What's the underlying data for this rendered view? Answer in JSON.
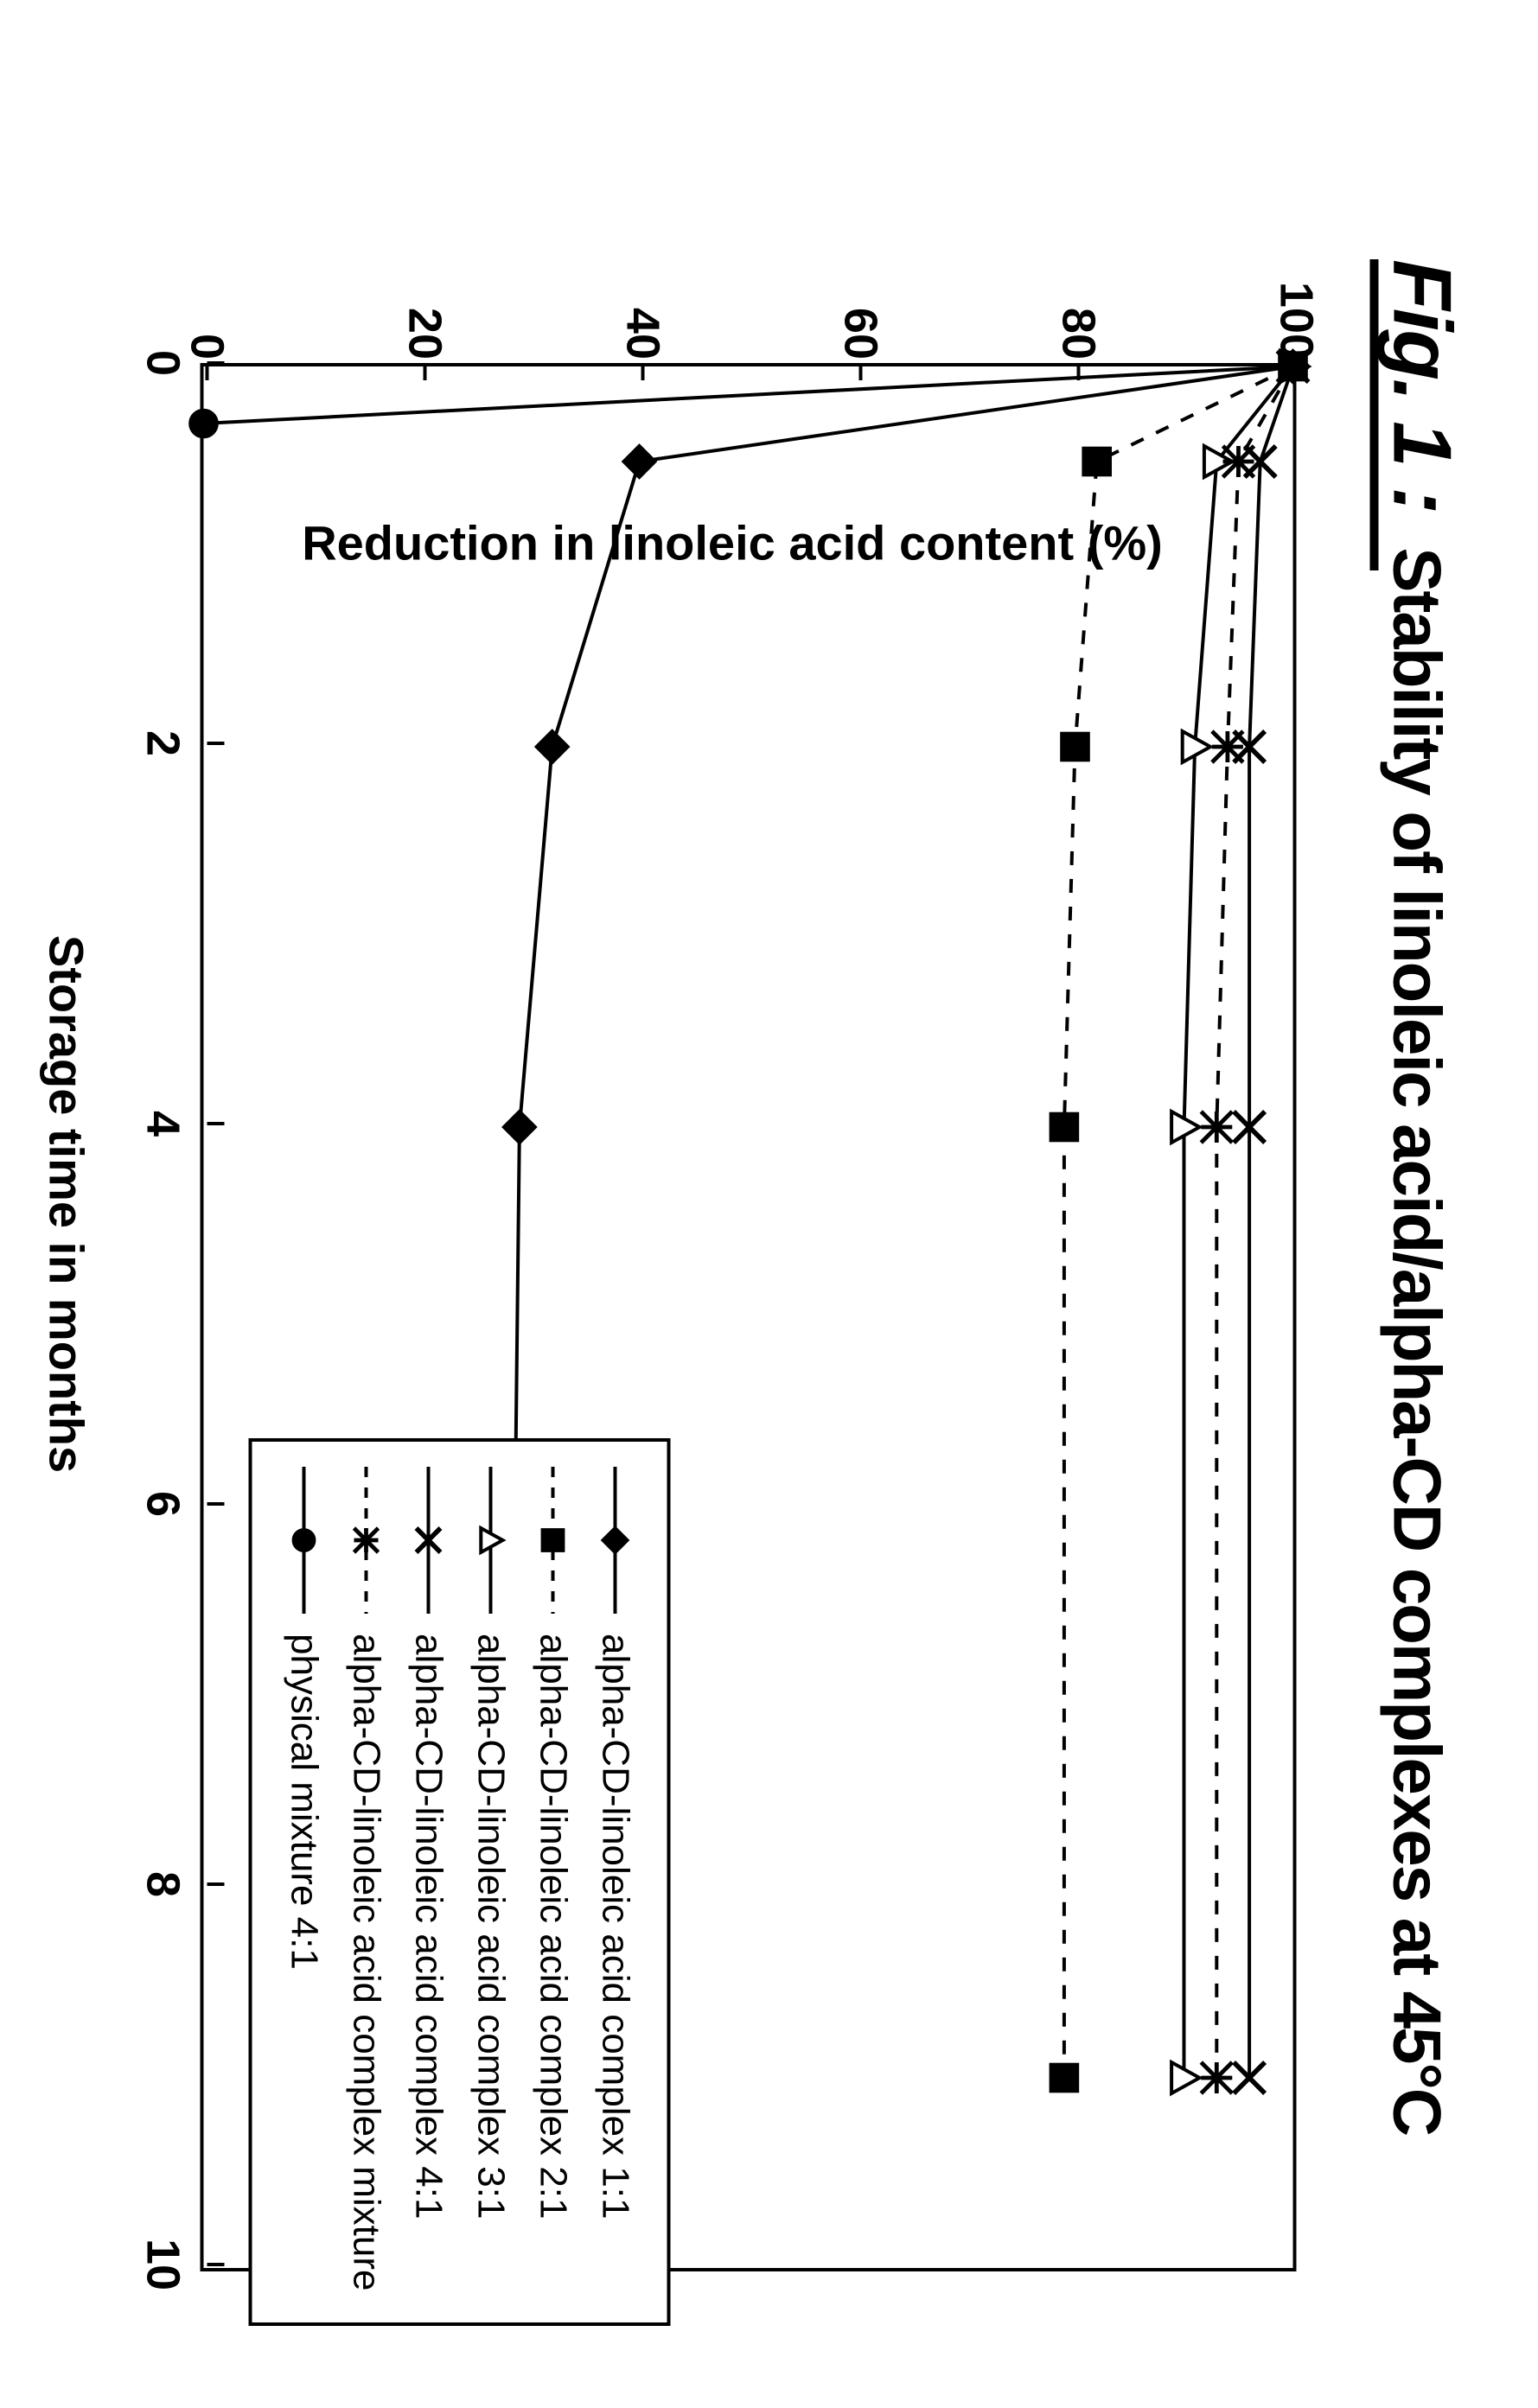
{
  "figure_label": "Fig. 1 :",
  "chart": {
    "type": "line",
    "title": "Stability of linoleic acid/alpha-CD complexes at 45°C",
    "xlabel": "Storage time in months",
    "ylabel": "Reduction in linoleic acid content (%)",
    "xlim": [
      0,
      10
    ],
    "ylim": [
      0,
      100
    ],
    "xticks": [
      0,
      2,
      4,
      6,
      8,
      10
    ],
    "yticks": [
      0,
      20,
      40,
      60,
      80,
      100
    ],
    "stroke_color": "#000000",
    "background_color": "#ffffff",
    "axis_fontsize": 54,
    "label_fontsize": 56,
    "title_fontsize": 78,
    "line_width": 4,
    "dash_pattern": "16,16",
    "marker_size": 18,
    "series": [
      {
        "label": "alpha-CD-linoleic acid complex 1:1",
        "marker": "diamond-filled",
        "dash": false,
        "x": [
          0,
          0.5,
          2,
          4,
          9
        ],
        "y": [
          100,
          40,
          32,
          29,
          28
        ]
      },
      {
        "label": "alpha-CD-linoleic acid complex 2:1",
        "marker": "square-filled",
        "dash": true,
        "x": [
          0,
          0.5,
          2,
          4,
          9
        ],
        "y": [
          100,
          82,
          80,
          79,
          79
        ]
      },
      {
        "label": "alpha-CD-linoleic acid complex 3:1",
        "marker": "triangle-open",
        "dash": false,
        "x": [
          0,
          0.5,
          2,
          4,
          9
        ],
        "y": [
          100,
          93,
          91,
          90,
          90
        ]
      },
      {
        "label": "alpha-CD-linoleic acid complex 4:1",
        "marker": "x",
        "dash": false,
        "x": [
          0,
          0.5,
          2,
          4,
          9
        ],
        "y": [
          100,
          97,
          96,
          96,
          96
        ]
      },
      {
        "label": "alpha-CD-linoleic acid complex mixture",
        "marker": "asterisk",
        "dash": true,
        "x": [
          0,
          0.5,
          2,
          4,
          9
        ],
        "y": [
          100,
          95,
          94,
          93,
          93
        ]
      },
      {
        "label": "physical mixture 4:1",
        "marker": "circle-filled",
        "dash": false,
        "x": [
          0,
          0.3
        ],
        "y": [
          100,
          0
        ]
      }
    ]
  }
}
